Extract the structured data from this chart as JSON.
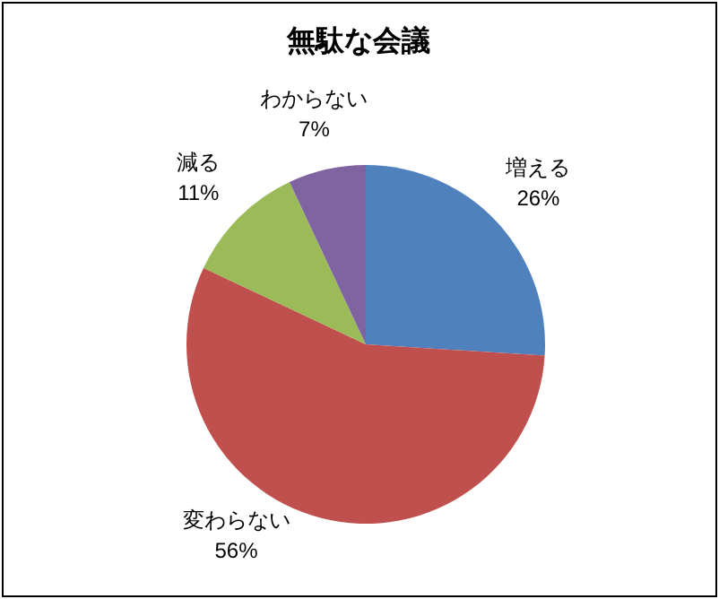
{
  "chart_data": {
    "type": "pie",
    "title": "無駄な会議",
    "categories": [
      "増える",
      "変わらない",
      "減る",
      "わからない"
    ],
    "values": [
      26,
      56,
      11,
      7
    ],
    "colors": [
      "#4f81bd",
      "#c0504d",
      "#9bbb59",
      "#8064a2"
    ],
    "value_labels": [
      "26%",
      "56%",
      "11%",
      "7%"
    ]
  }
}
